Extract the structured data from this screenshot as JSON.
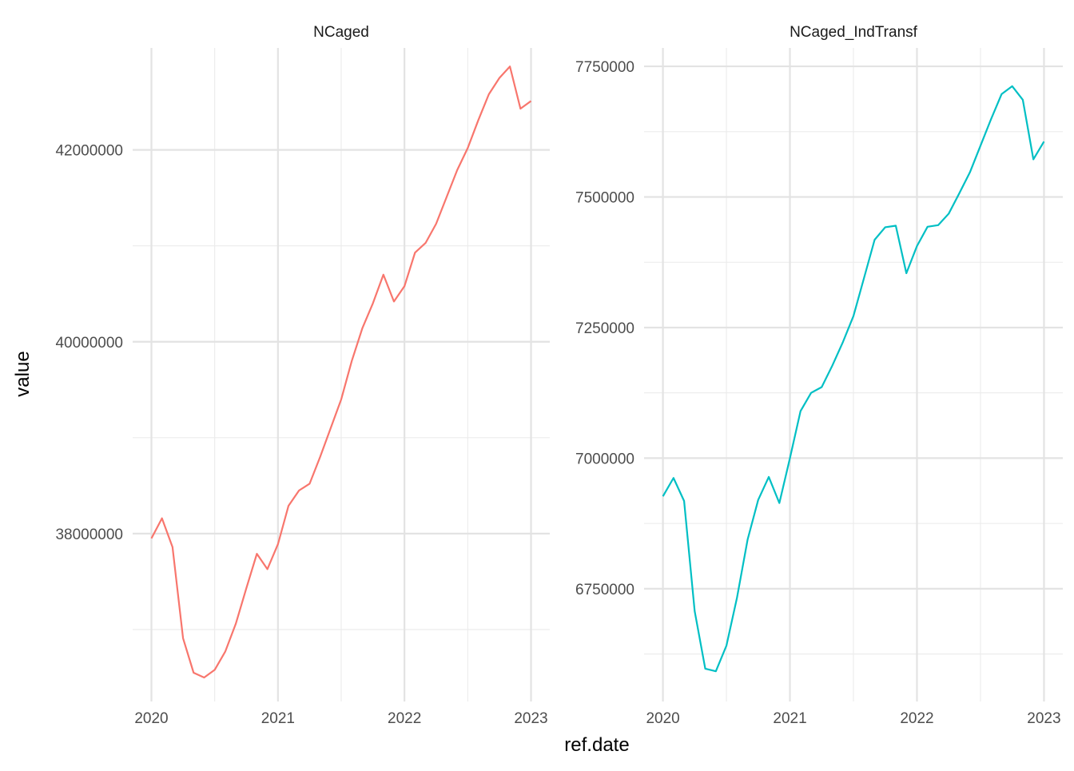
{
  "chart_data": {
    "type": "line",
    "xlabel": "ref.date",
    "ylabel": "value",
    "grid": true,
    "legend": "none",
    "x_tick_labels": [
      "2020",
      "2021",
      "2022",
      "2023"
    ],
    "x_ticks": [
      "2020-01",
      "2021-01",
      "2022-01",
      "2023-01"
    ],
    "xlim": [
      "2020-01",
      "2023-01"
    ],
    "panels": [
      {
        "strip_label": "NCaged",
        "color": "#F8766D",
        "ylim": [
          36500000,
          42980000
        ],
        "y_ticks": [
          38000000,
          40000000,
          42000000
        ],
        "y_tick_labels": [
          "38000000",
          "40000000",
          "42000000"
        ],
        "x": [
          "2020-01",
          "2020-02",
          "2020-03",
          "2020-04",
          "2020-05",
          "2020-06",
          "2020-07",
          "2020-08",
          "2020-09",
          "2020-10",
          "2020-11",
          "2020-12",
          "2021-01",
          "2021-02",
          "2021-03",
          "2021-04",
          "2021-05",
          "2021-06",
          "2021-07",
          "2021-08",
          "2021-09",
          "2021-10",
          "2021-11",
          "2021-12",
          "2022-01",
          "2022-02",
          "2022-03",
          "2022-04",
          "2022-05",
          "2022-06",
          "2022-07",
          "2022-08",
          "2022-09",
          "2022-10",
          "2022-11",
          "2022-12",
          "2023-01"
        ],
        "values": [
          37950000,
          38160000,
          37860000,
          36910000,
          36550000,
          36500000,
          36580000,
          36770000,
          37060000,
          37430000,
          37790000,
          37630000,
          37890000,
          38290000,
          38450000,
          38520000,
          38800000,
          39100000,
          39400000,
          39800000,
          40140000,
          40400000,
          40700000,
          40420000,
          40580000,
          40930000,
          41030000,
          41230000,
          41510000,
          41790000,
          42020000,
          42310000,
          42580000,
          42750000,
          42870000,
          42430000,
          42510000
        ]
      },
      {
        "strip_label": "NCaged_IndTransf",
        "color": "#00BFC4",
        "ylim": [
          6580000,
          7770000
        ],
        "y_ticks": [
          6750000,
          7000000,
          7250000,
          7500000,
          7750000
        ],
        "y_tick_labels": [
          "6750000",
          "7000000",
          "7250000",
          "7500000",
          "7750000"
        ],
        "x": [
          "2020-01",
          "2020-02",
          "2020-03",
          "2020-04",
          "2020-05",
          "2020-06",
          "2020-07",
          "2020-08",
          "2020-09",
          "2020-10",
          "2020-11",
          "2020-12",
          "2021-01",
          "2021-02",
          "2021-03",
          "2021-04",
          "2021-05",
          "2021-06",
          "2021-07",
          "2021-08",
          "2021-09",
          "2021-10",
          "2021-11",
          "2021-12",
          "2022-01",
          "2022-02",
          "2022-03",
          "2022-04",
          "2022-05",
          "2022-06",
          "2022-07",
          "2022-08",
          "2022-09",
          "2022-10",
          "2022-11",
          "2022-12",
          "2023-01"
        ],
        "values": [
          6927000,
          6962000,
          6918000,
          6707000,
          6597000,
          6592000,
          6641000,
          6733000,
          6844000,
          6920000,
          6964000,
          6914000,
          7000000,
          7090000,
          7125000,
          7136000,
          7177000,
          7222000,
          7272000,
          7345000,
          7418000,
          7442000,
          7445000,
          7354000,
          7406000,
          7443000,
          7446000,
          7468000,
          7507000,
          7547000,
          7598000,
          7649000,
          7697000,
          7712000,
          7686000,
          7572000,
          7606000
        ]
      }
    ]
  }
}
